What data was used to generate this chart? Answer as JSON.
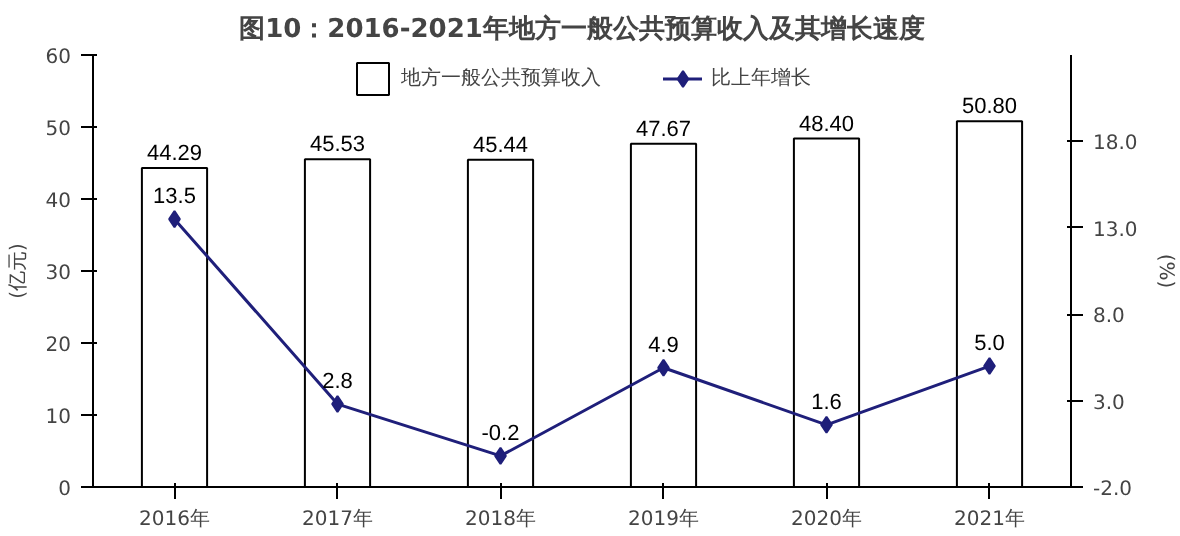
{
  "chart_data": {
    "type": "bar",
    "title": "图10：2016-2021年地方一般公共预算收入及其增长速度",
    "categories": [
      "2016年",
      "2017年",
      "2018年",
      "2019年",
      "2020年",
      "2021年"
    ],
    "series": [
      {
        "name": "地方一般公共预算收入",
        "color": "#ffffff",
        "values": [
          44.29,
          45.53,
          45.44,
          47.67,
          48.4,
          50.8
        ],
        "value_labels": [
          "44.29",
          "45.53",
          "45.44",
          "47.67",
          "48.40",
          "50.80"
        ]
      },
      {
        "name": "比上年增长",
        "type": "line",
        "axis": "y2",
        "color": "#1f1f7a",
        "values": [
          13.5,
          2.8,
          -0.2,
          4.9,
          1.6,
          5.0
        ],
        "value_labels": [
          "13.5",
          "2.8",
          "-0.2",
          "4.9",
          "1.6",
          "5.0"
        ]
      }
    ],
    "ylabel": "(亿元)",
    "y2label": "(%)",
    "ylim": [
      0,
      60
    ],
    "yticks": [
      0,
      10,
      20,
      30,
      40,
      50,
      60
    ],
    "y2lim": [
      -2,
      23
    ],
    "y2ticks": [
      {
        "value": -2,
        "label": "-2.0"
      },
      {
        "value": 3,
        "label": "3.0"
      },
      {
        "value": 8,
        "label": "8.0"
      },
      {
        "value": 13,
        "label": "13.0"
      },
      {
        "value": 18,
        "label": "18.0"
      }
    ],
    "marker": "diamond",
    "legend": "top",
    "grid": false
  }
}
